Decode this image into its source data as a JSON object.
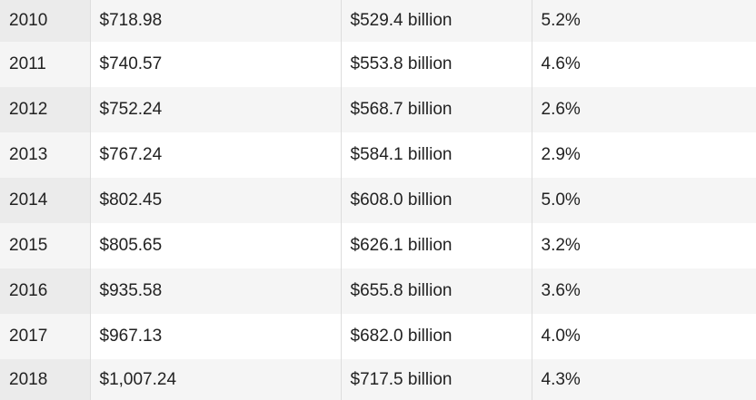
{
  "table": {
    "rows": [
      {
        "year": "2010",
        "per_capita": "$718.98",
        "total": "$529.4 billion",
        "change": "5.2%"
      },
      {
        "year": "2011",
        "per_capita": "$740.57",
        "total": "$553.8 billion",
        "change": "4.6%"
      },
      {
        "year": "2012",
        "per_capita": "$752.24",
        "total": "$568.7 billion",
        "change": "2.6%"
      },
      {
        "year": "2013",
        "per_capita": "$767.24",
        "total": "$584.1 billion",
        "change": "2.9%"
      },
      {
        "year": "2014",
        "per_capita": "$802.45",
        "total": "$608.0 billion",
        "change": "5.0%"
      },
      {
        "year": "2015",
        "per_capita": "$805.65",
        "total": "$626.1 billion",
        "change": "3.2%"
      },
      {
        "year": "2016",
        "per_capita": "$935.58",
        "total": "$655.8 billion",
        "change": "3.6%"
      },
      {
        "year": "2017",
        "per_capita": "$967.13",
        "total": "$682.0 billion",
        "change": "4.0%"
      },
      {
        "year": "2018",
        "per_capita": "$1,007.24",
        "total": "$717.5 billion",
        "change": "4.3%"
      }
    ]
  }
}
